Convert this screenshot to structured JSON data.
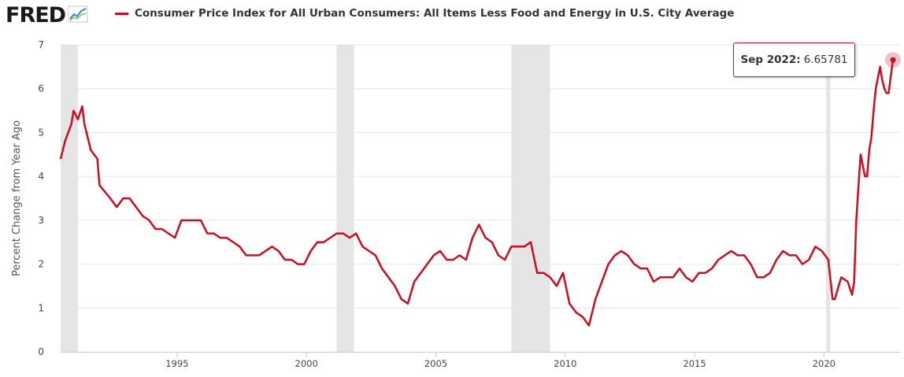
{
  "header": {
    "logo_text": "FRED",
    "logo_icon": "chart-line-icon",
    "series_title": "Consumer Price Index for All Urban Consumers: All Items Less Food and Energy in U.S. City Average"
  },
  "tooltip": {
    "date": "Sep 2022:",
    "value": "6.65781"
  },
  "colors": {
    "series": "#c90d23",
    "recession": "#e5e5e5",
    "grid": "#e6e6e6"
  },
  "chart_data": {
    "type": "line",
    "title": "Consumer Price Index for All Urban Consumers: All Items Less Food and Energy in U.S. City Average",
    "xlabel": "",
    "ylabel": "Percent Change from Year Ago",
    "xlim": [
      "1990-07",
      "2022-09"
    ],
    "ylim": [
      0,
      7
    ],
    "yticks": [
      "0",
      "1",
      "2",
      "3",
      "4",
      "5",
      "6",
      "7"
    ],
    "xticks": [
      "1995",
      "2000",
      "2005",
      "2010",
      "2015",
      "2020"
    ],
    "grid": "horizontal",
    "legend": "top-left",
    "recessions": [
      [
        "1990-07",
        "1991-03"
      ],
      [
        "2001-03",
        "2001-11"
      ],
      [
        "2007-12",
        "2009-06"
      ],
      [
        "2020-02",
        "2020-04"
      ]
    ],
    "series": [
      {
        "name": "Consumer Price Index for All Urban Consumers: All Items Less Food and Energy in U.S. City Average",
        "points": [
          [
            "1990-07",
            4.4
          ],
          [
            "1990-09",
            4.8
          ],
          [
            "1990-12",
            5.2
          ],
          [
            "1991-01",
            5.5
          ],
          [
            "1991-03",
            5.3
          ],
          [
            "1991-05",
            5.6
          ],
          [
            "1991-06",
            5.2
          ],
          [
            "1991-09",
            4.6
          ],
          [
            "1991-12",
            4.4
          ],
          [
            "1992-01",
            3.8
          ],
          [
            "1992-06",
            3.5
          ],
          [
            "1992-09",
            3.3
          ],
          [
            "1992-12",
            3.5
          ],
          [
            "1993-03",
            3.5
          ],
          [
            "1993-06",
            3.3
          ],
          [
            "1993-09",
            3.1
          ],
          [
            "1993-12",
            3.0
          ],
          [
            "1994-03",
            2.8
          ],
          [
            "1994-06",
            2.8
          ],
          [
            "1994-09",
            2.7
          ],
          [
            "1994-12",
            2.6
          ],
          [
            "1995-03",
            3.0
          ],
          [
            "1995-06",
            3.0
          ],
          [
            "1995-09",
            3.0
          ],
          [
            "1995-12",
            3.0
          ],
          [
            "1996-03",
            2.7
          ],
          [
            "1996-06",
            2.7
          ],
          [
            "1996-09",
            2.6
          ],
          [
            "1996-12",
            2.6
          ],
          [
            "1997-03",
            2.5
          ],
          [
            "1997-06",
            2.4
          ],
          [
            "1997-09",
            2.2
          ],
          [
            "1997-12",
            2.2
          ],
          [
            "1998-03",
            2.2
          ],
          [
            "1998-06",
            2.3
          ],
          [
            "1998-09",
            2.4
          ],
          [
            "1998-12",
            2.3
          ],
          [
            "1999-03",
            2.1
          ],
          [
            "1999-06",
            2.1
          ],
          [
            "1999-09",
            2.0
          ],
          [
            "1999-12",
            2.0
          ],
          [
            "2000-03",
            2.3
          ],
          [
            "2000-06",
            2.5
          ],
          [
            "2000-09",
            2.5
          ],
          [
            "2000-12",
            2.6
          ],
          [
            "2001-03",
            2.7
          ],
          [
            "2001-06",
            2.7
          ],
          [
            "2001-09",
            2.6
          ],
          [
            "2001-12",
            2.7
          ],
          [
            "2002-03",
            2.4
          ],
          [
            "2002-06",
            2.3
          ],
          [
            "2002-09",
            2.2
          ],
          [
            "2002-12",
            1.9
          ],
          [
            "2003-03",
            1.7
          ],
          [
            "2003-06",
            1.5
          ],
          [
            "2003-09",
            1.2
          ],
          [
            "2003-12",
            1.1
          ],
          [
            "2004-03",
            1.6
          ],
          [
            "2004-06",
            1.8
          ],
          [
            "2004-09",
            2.0
          ],
          [
            "2004-12",
            2.2
          ],
          [
            "2005-03",
            2.3
          ],
          [
            "2005-06",
            2.1
          ],
          [
            "2005-09",
            2.1
          ],
          [
            "2005-12",
            2.2
          ],
          [
            "2006-03",
            2.1
          ],
          [
            "2006-06",
            2.6
          ],
          [
            "2006-09",
            2.9
          ],
          [
            "2006-12",
            2.6
          ],
          [
            "2007-03",
            2.5
          ],
          [
            "2007-06",
            2.2
          ],
          [
            "2007-09",
            2.1
          ],
          [
            "2007-12",
            2.4
          ],
          [
            "2008-03",
            2.4
          ],
          [
            "2008-06",
            2.4
          ],
          [
            "2008-09",
            2.5
          ],
          [
            "2008-12",
            1.8
          ],
          [
            "2009-03",
            1.8
          ],
          [
            "2009-06",
            1.7
          ],
          [
            "2009-09",
            1.5
          ],
          [
            "2009-12",
            1.8
          ],
          [
            "2010-03",
            1.1
          ],
          [
            "2010-06",
            0.9
          ],
          [
            "2010-09",
            0.8
          ],
          [
            "2010-12",
            0.6
          ],
          [
            "2011-03",
            1.2
          ],
          [
            "2011-06",
            1.6
          ],
          [
            "2011-09",
            2.0
          ],
          [
            "2011-12",
            2.2
          ],
          [
            "2012-03",
            2.3
          ],
          [
            "2012-06",
            2.2
          ],
          [
            "2012-09",
            2.0
          ],
          [
            "2012-12",
            1.9
          ],
          [
            "2013-03",
            1.9
          ],
          [
            "2013-06",
            1.6
          ],
          [
            "2013-09",
            1.7
          ],
          [
            "2013-12",
            1.7
          ],
          [
            "2014-03",
            1.7
          ],
          [
            "2014-06",
            1.9
          ],
          [
            "2014-09",
            1.7
          ],
          [
            "2014-12",
            1.6
          ],
          [
            "2015-03",
            1.8
          ],
          [
            "2015-06",
            1.8
          ],
          [
            "2015-09",
            1.9
          ],
          [
            "2015-12",
            2.1
          ],
          [
            "2016-03",
            2.2
          ],
          [
            "2016-06",
            2.3
          ],
          [
            "2016-09",
            2.2
          ],
          [
            "2016-12",
            2.2
          ],
          [
            "2017-03",
            2.0
          ],
          [
            "2017-06",
            1.7
          ],
          [
            "2017-09",
            1.7
          ],
          [
            "2017-12",
            1.8
          ],
          [
            "2018-03",
            2.1
          ],
          [
            "2018-06",
            2.3
          ],
          [
            "2018-09",
            2.2
          ],
          [
            "2018-12",
            2.2
          ],
          [
            "2019-03",
            2.0
          ],
          [
            "2019-06",
            2.1
          ],
          [
            "2019-09",
            2.4
          ],
          [
            "2019-12",
            2.3
          ],
          [
            "2020-03",
            2.1
          ],
          [
            "2020-05",
            1.2
          ],
          [
            "2020-06",
            1.2
          ],
          [
            "2020-09",
            1.7
          ],
          [
            "2020-12",
            1.6
          ],
          [
            "2021-02",
            1.3
          ],
          [
            "2021-03",
            1.6
          ],
          [
            "2021-04",
            3.0
          ],
          [
            "2021-05",
            3.8
          ],
          [
            "2021-06",
            4.5
          ],
          [
            "2021-08",
            4.0
          ],
          [
            "2021-09",
            4.0
          ],
          [
            "2021-10",
            4.6
          ],
          [
            "2021-11",
            4.9
          ],
          [
            "2021-12",
            5.5
          ],
          [
            "2022-01",
            6.0
          ],
          [
            "2022-03",
            6.5
          ],
          [
            "2022-04",
            6.2
          ],
          [
            "2022-05",
            6.0
          ],
          [
            "2022-06",
            5.9
          ],
          [
            "2022-07",
            5.9
          ],
          [
            "2022-08",
            6.3
          ],
          [
            "2022-09",
            6.65781
          ]
        ]
      }
    ]
  }
}
